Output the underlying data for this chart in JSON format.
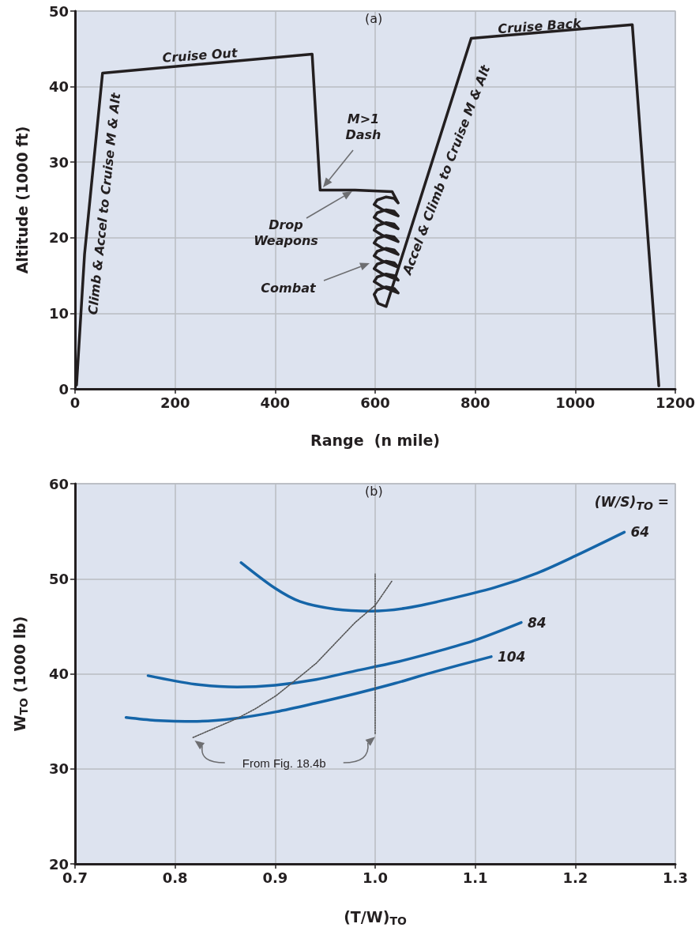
{
  "chart_data": [
    {
      "type": "line",
      "title": "(a)",
      "xlabel": "Range  (n mile)",
      "ylabel": "Altitude (1000 ft)",
      "xlim": [
        0,
        1200
      ],
      "xticks": [
        0,
        200,
        400,
        600,
        800,
        1000,
        1200
      ],
      "ylim": [
        0,
        50
      ],
      "yticks": [
        0,
        10,
        20,
        30,
        40,
        50
      ],
      "grid": true,
      "legend": false,
      "marker": "none",
      "line_style": "solid",
      "series": [
        {
          "color": "#231f20",
          "x": [
            3,
            19,
            55,
            474,
            490,
            560,
            634,
            646,
            638,
            622,
            604,
            598,
            615,
            646,
            638,
            622,
            604,
            598,
            615,
            646,
            638,
            622,
            604,
            598,
            615,
            646,
            638,
            622,
            604,
            598,
            615,
            646,
            638,
            622,
            604,
            598,
            615,
            646,
            638,
            622,
            604,
            598,
            615,
            646,
            638,
            622,
            604,
            598,
            615,
            646,
            638,
            622,
            604,
            598,
            606,
            622,
            792,
            1114,
            1167
          ],
          "values": [
            0.5,
            17.8,
            41.8,
            44.3,
            26.3,
            26.3,
            26.1,
            24.6,
            25.2,
            25.4,
            25,
            24.4,
            23.7,
            22.9,
            23.5,
            23.7,
            23.3,
            22.7,
            22,
            21.2,
            21.8,
            22,
            21.6,
            21,
            20.3,
            19.5,
            20.1,
            20.3,
            19.9,
            19.3,
            18.6,
            17.8,
            18.4,
            18.6,
            18.2,
            17.6,
            16.9,
            16.1,
            16.7,
            16.9,
            16.5,
            15.9,
            15.2,
            14.4,
            15,
            15.2,
            14.8,
            14.2,
            13.5,
            12.7,
            13.3,
            13.5,
            13.1,
            12.5,
            11.3,
            10.9,
            46.4,
            48.2,
            0.4
          ]
        }
      ],
      "annotations": [
        "Climb & Accel to Cruise M & Alt",
        "Cruise Out",
        "M>1\nDash",
        "Drop\nWeapons",
        "Combat",
        "Accel & Climb to Cruise M & Alt",
        "Cruise Back"
      ]
    },
    {
      "type": "line",
      "title": "(b)",
      "xlabel": "(T/W)$_{TO}$",
      "ylabel": "W$_{TO}$ (1000 lb)",
      "legend_title": "(W/S)$_{TO}$ =",
      "xlim": [
        0.7,
        1.3
      ],
      "xticks": [
        {
          "value": 0.7,
          "label": "0.7"
        },
        {
          "value": 0.8,
          "label": "0.8"
        },
        {
          "value": 0.9,
          "label": "0.9"
        },
        {
          "value": 1.0,
          "label": "1.0"
        },
        {
          "value": 1.1,
          "label": "1.1"
        },
        {
          "value": 1.2,
          "label": "1.2"
        },
        {
          "value": 1.3,
          "label": "1.3"
        }
      ],
      "ylim": [
        20,
        60
      ],
      "yticks": [
        20,
        30,
        40,
        50,
        60
      ],
      "grid": true,
      "legend": false,
      "marker": "none",
      "series": [
        {
          "name": "64",
          "color": "#1565a8",
          "line_style": "solid",
          "x": [
            0.866,
            0.9,
            0.925,
            0.96,
            0.996,
            1.03,
            1.067,
            1.12,
            1.162,
            1.2,
            1.249
          ],
          "values": [
            51.7,
            49,
            47.6,
            46.8,
            46.6,
            46.9,
            47.7,
            49.1,
            50.6,
            52.4,
            54.9
          ]
        },
        {
          "name": "84",
          "color": "#1565a8",
          "line_style": "solid",
          "x": [
            0.773,
            0.82,
            0.862,
            0.9,
            0.941,
            0.98,
            1.02,
            1.06,
            1.099,
            1.146
          ],
          "values": [
            39.8,
            38.9,
            38.6,
            38.8,
            39.4,
            40.3,
            41.2,
            42.3,
            43.5,
            45.4
          ]
        },
        {
          "name": "104",
          "color": "#1565a8",
          "line_style": "solid",
          "x": [
            0.751,
            0.78,
            0.822,
            0.86,
            0.901,
            0.94,
            0.98,
            1.02,
            1.059,
            1.116
          ],
          "values": [
            35.4,
            35.1,
            35,
            35.3,
            36,
            36.9,
            37.9,
            39,
            40.2,
            41.8
          ]
        },
        {
          "color": "#555555",
          "line_style": "dotted",
          "x": [
            0.818,
            0.84,
            0.862,
            0.88,
            0.901,
            0.92,
            0.941,
            0.96,
            0.98,
            1.0,
            1.017
          ],
          "values": [
            33.3,
            34.3,
            35.3,
            36.3,
            37.7,
            39.3,
            41.1,
            43.2,
            45.4,
            47.2,
            49.8
          ]
        },
        {
          "color": "#555555",
          "line_style": "dotted",
          "x": [
            1.0,
            1.0
          ],
          "values": [
            33.7,
            50.5
          ]
        }
      ],
      "annotations": [
        "From Fig. 18.4b"
      ]
    }
  ]
}
